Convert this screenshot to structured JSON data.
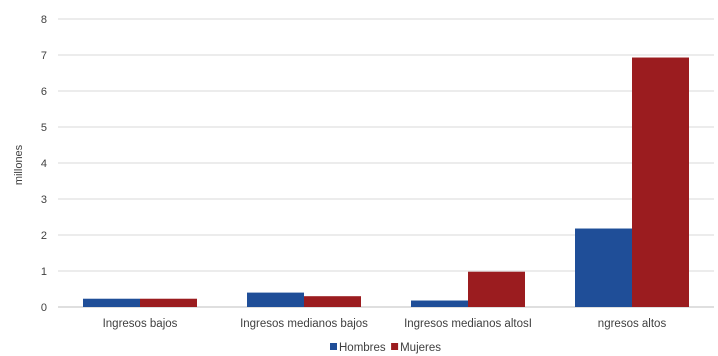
{
  "chart_data": {
    "type": "bar",
    "ylabel": "millones",
    "ylim": [
      0,
      8
    ],
    "yticks": [
      "0",
      "1",
      "2",
      "3",
      "4",
      "5",
      "6",
      "7",
      "8"
    ],
    "categories": [
      "Ingresos bajos",
      "Ingresos medianos bajos",
      "Ingresos medianos altosI",
      "ngresos altos"
    ],
    "series": [
      {
        "name": "Hombres",
        "color": "#1f4e98",
        "values": [
          0.23,
          0.4,
          0.18,
          2.18
        ]
      },
      {
        "name": "Mujeres",
        "color": "#9b1c1f",
        "values": [
          0.23,
          0.3,
          0.98,
          6.93
        ]
      }
    ],
    "grid": true,
    "legend": "bottom-center"
  }
}
